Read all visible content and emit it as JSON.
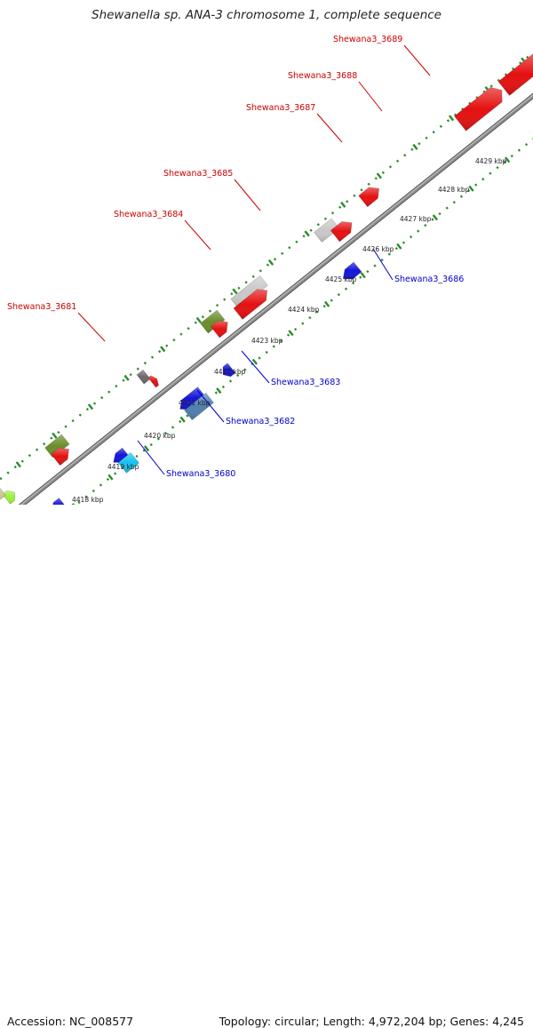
{
  "title": "Shewanella sp. ANA-3 chromosome 1, complete sequence",
  "footer": {
    "accession": "Accession: NC_008577",
    "topology": "Topology: circular; Length: 4,972,204 bp; Genes: 4,245"
  },
  "colors": {
    "forward_label": "#cc0000",
    "reverse_label": "#0000cc",
    "tick": "#2a8a2a",
    "backbone": "#8c8c8c",
    "red": "#e41010",
    "blue": "#1515d8",
    "grey": "#c8c8c8",
    "olive": "#6a8e2a",
    "steel": "#4f7fb0",
    "cyan": "#14c2f0",
    "khaki": "#c8c48c",
    "lime": "#98f23a",
    "darkgrey": "#6a6a6a"
  },
  "kbp_labels": [
    "4418 kbp",
    "4419 kbp",
    "4420 kbp",
    "4421 kbp",
    "4422 kbp",
    "4423 kbp",
    "4424 kbp",
    "4425 kbp",
    "4426 kbp",
    "4427 kbp",
    "4428 kbp",
    "4429 kbp"
  ],
  "labels": [
    {
      "text": "Shewana3_3689",
      "strand": "forward"
    },
    {
      "text": "Shewana3_3688",
      "strand": "forward"
    },
    {
      "text": "Shewana3_3687",
      "strand": "forward"
    },
    {
      "text": "Shewana3_3685",
      "strand": "forward"
    },
    {
      "text": "Shewana3_3684",
      "strand": "forward"
    },
    {
      "text": "Shewana3_3681",
      "strand": "forward"
    },
    {
      "text": "Shewana3_3686",
      "strand": "reverse"
    },
    {
      "text": "Shewana3_3683",
      "strand": "reverse"
    },
    {
      "text": "Shewana3_3682",
      "strand": "reverse"
    },
    {
      "text": "Shewana3_3680",
      "strand": "reverse"
    }
  ],
  "genes": [
    {
      "strand": "forward",
      "color": "red"
    },
    {
      "strand": "forward",
      "color": "red"
    },
    {
      "strand": "forward",
      "color": "red"
    },
    {
      "strand": "forward",
      "color": "grey"
    },
    {
      "strand": "forward",
      "color": "red"
    },
    {
      "strand": "forward",
      "color": "grey"
    },
    {
      "strand": "forward",
      "color": "red"
    },
    {
      "strand": "forward",
      "color": "olive"
    },
    {
      "strand": "forward",
      "color": "red"
    },
    {
      "strand": "forward",
      "color": "darkgrey"
    },
    {
      "strand": "forward",
      "color": "red"
    },
    {
      "strand": "forward",
      "color": "olive"
    },
    {
      "strand": "forward",
      "color": "red"
    },
    {
      "strand": "forward",
      "color": "lime"
    },
    {
      "strand": "forward",
      "color": "khaki"
    },
    {
      "strand": "reverse",
      "color": "blue"
    },
    {
      "strand": "reverse",
      "color": "blue"
    },
    {
      "strand": "reverse",
      "color": "blue"
    },
    {
      "strand": "reverse",
      "color": "steel"
    },
    {
      "strand": "reverse",
      "color": "blue"
    },
    {
      "strand": "reverse",
      "color": "cyan"
    },
    {
      "strand": "reverse",
      "color": "blue"
    },
    {
      "strand": "reverse",
      "color": "blue"
    },
    {
      "strand": "reverse",
      "color": "khaki"
    }
  ]
}
